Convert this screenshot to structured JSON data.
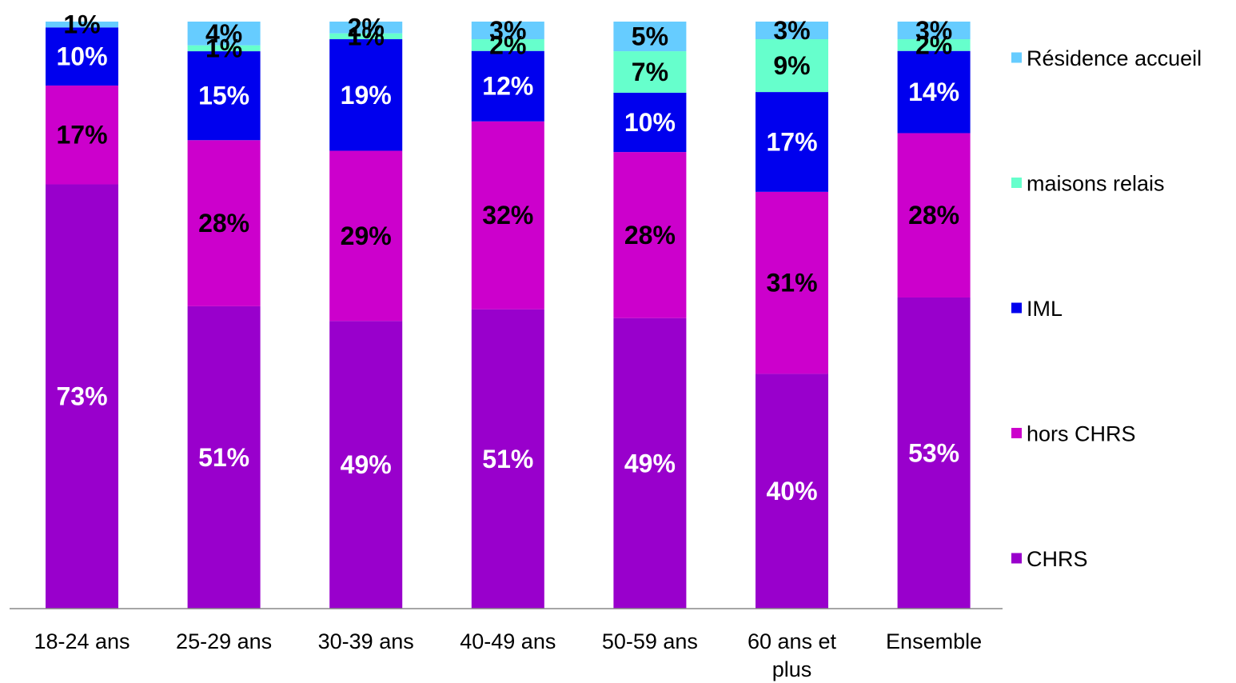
{
  "chart_data": {
    "type": "bar",
    "stacked": true,
    "percent_stacked": true,
    "categories": [
      "18-24 ans",
      "25-29 ans",
      "30-39 ans",
      "40-49 ans",
      "50-59 ans",
      "60 ans et plus",
      "Ensemble"
    ],
    "category_label_lines": [
      [
        "18-24 ans"
      ],
      [
        "25-29 ans"
      ],
      [
        "30-39 ans"
      ],
      [
        "40-49 ans"
      ],
      [
        "50-59 ans"
      ],
      [
        "60 ans et",
        "plus"
      ],
      [
        "Ensemble"
      ]
    ],
    "series": [
      {
        "name": "CHRS",
        "color": "#9900CC",
        "label_color": "#ffffff",
        "values": [
          73,
          51,
          49,
          51,
          49,
          40,
          53
        ]
      },
      {
        "name": "hors CHRS",
        "color": "#CC00CC",
        "label_color": "#000000",
        "values": [
          17,
          28,
          29,
          32,
          28,
          31,
          28
        ]
      },
      {
        "name": "IML",
        "color": "#0000EE",
        "label_color": "#ffffff",
        "values": [
          10,
          15,
          19,
          12,
          10,
          17,
          14
        ]
      },
      {
        "name": "maisons relais",
        "color": "#66FFCC",
        "label_color": "#000000",
        "values": [
          0,
          1,
          1,
          2,
          7,
          9,
          2
        ]
      },
      {
        "name": "Résidence accueil",
        "color": "#66CCFF",
        "label_color": "#000000",
        "values": [
          1,
          4,
          2,
          3,
          5,
          3,
          3
        ]
      }
    ],
    "data_labels": [
      [
        "73%",
        "17%",
        "10%",
        "",
        "1%"
      ],
      [
        "51%",
        "28%",
        "15%",
        "1%",
        "4%"
      ],
      [
        "49%",
        "29%",
        "19%",
        "1%",
        "2%"
      ],
      [
        "51%",
        "32%",
        "12%",
        "2%",
        "3%"
      ],
      [
        "49%",
        "28%",
        "10%",
        "7%",
        "5%"
      ],
      [
        "40%",
        "31%",
        "17%",
        "9%",
        "3%"
      ],
      [
        "53%",
        "28%",
        "14%",
        "2%",
        "3%"
      ]
    ],
    "legend_order": [
      "Résidence accueil",
      "maisons relais",
      "IML",
      "hors CHRS",
      "CHRS"
    ],
    "legend_position": "right",
    "title": "",
    "xlabel": "",
    "ylabel": "",
    "grid": false,
    "y_axis_visible": false
  }
}
